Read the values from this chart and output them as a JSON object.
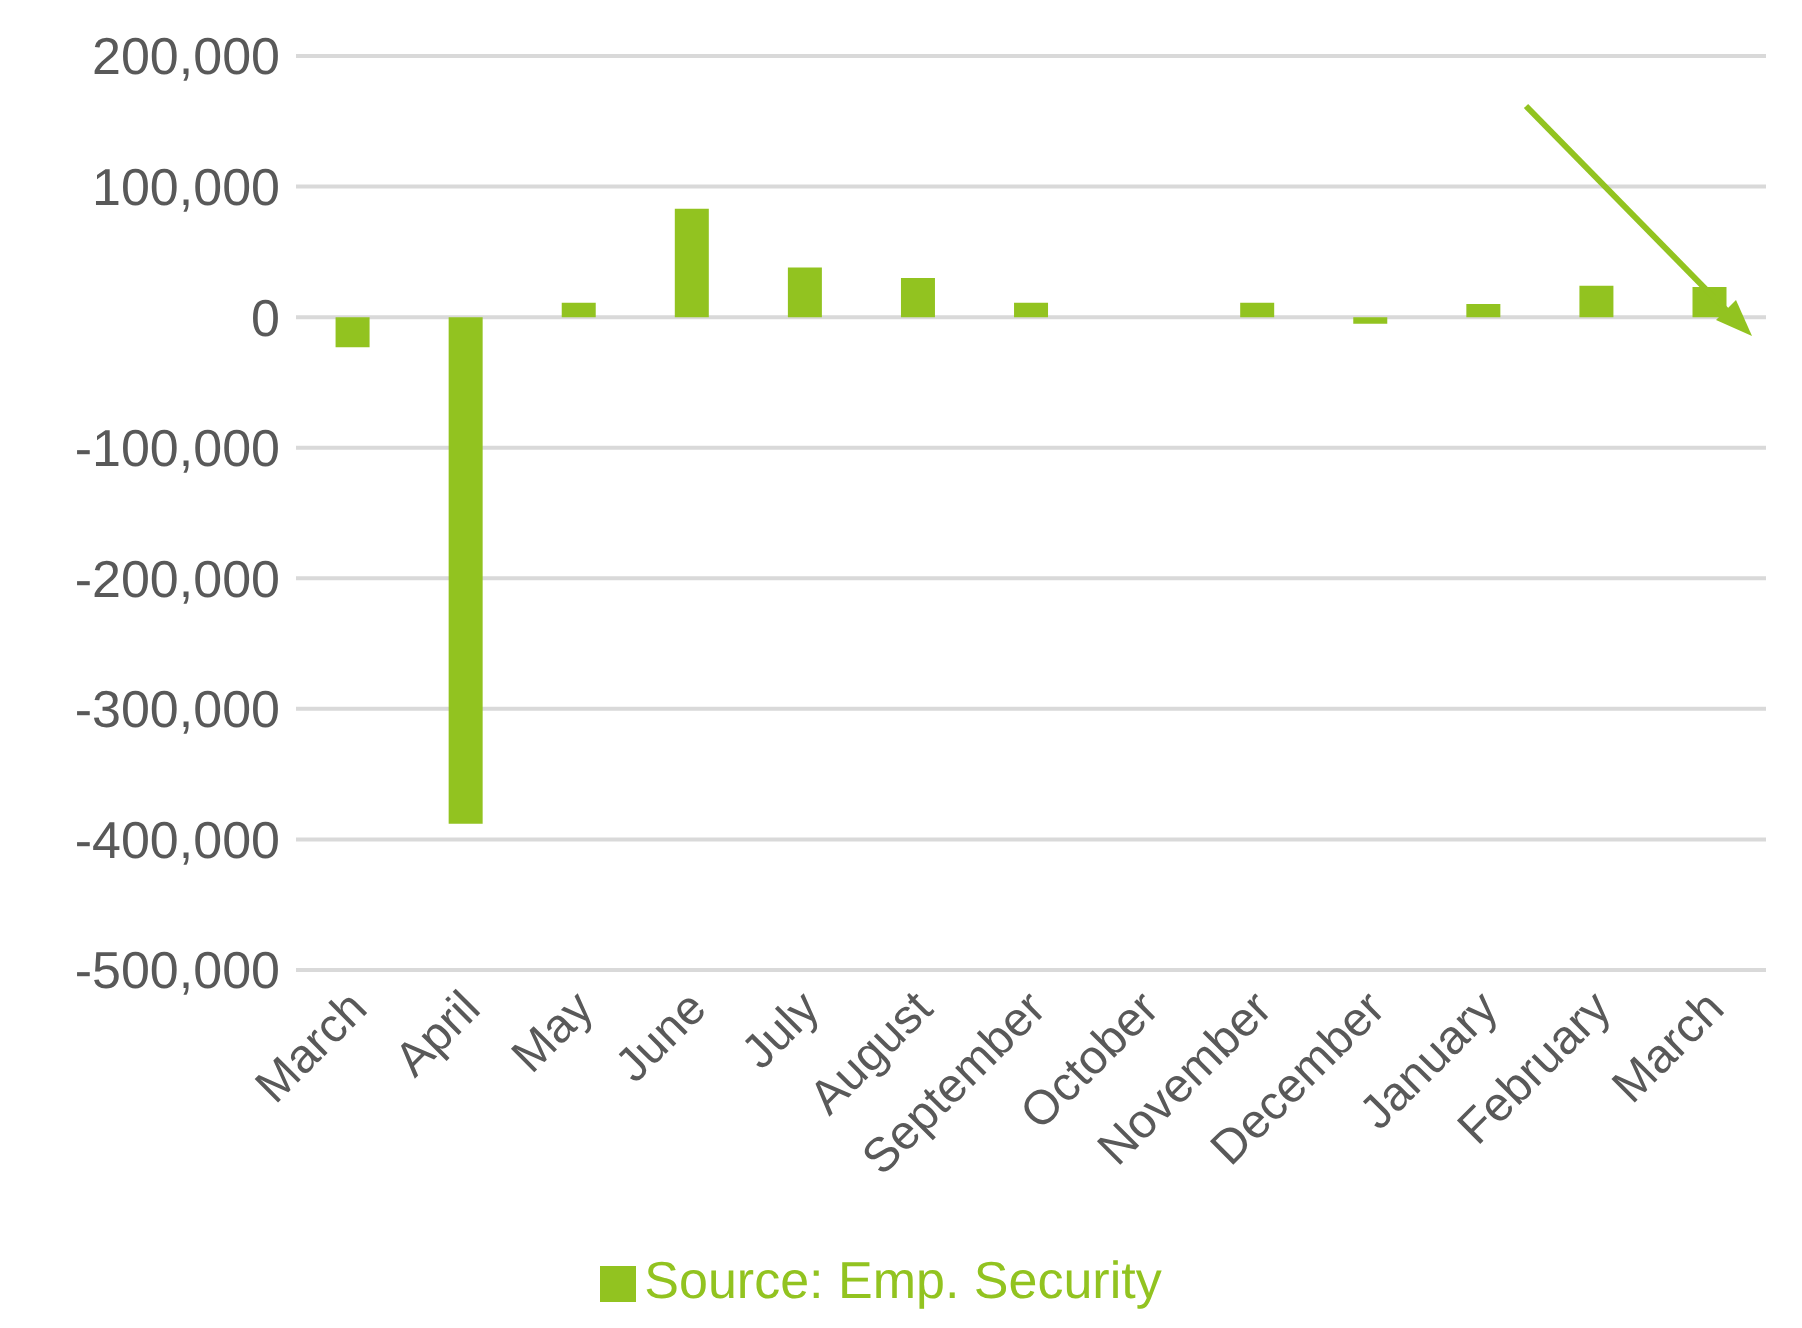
{
  "chart_data": {
    "type": "bar",
    "categories": [
      "March",
      "April",
      "May",
      "June",
      "July",
      "August",
      "September",
      "October",
      "November",
      "December",
      "January",
      "February",
      "March"
    ],
    "series": [
      {
        "name": "Source: Emp. Security",
        "color": "#92c320",
        "values": [
          -23000,
          -388000,
          11000,
          83000,
          38000,
          30000,
          11000,
          0,
          11000,
          -5000,
          10000,
          24000,
          23000
        ]
      }
    ],
    "ylim": [
      -500000,
      200000
    ],
    "yticks": [
      {
        "value": -500000,
        "label": "-500,000"
      },
      {
        "value": -400000,
        "label": "-400,000"
      },
      {
        "value": -300000,
        "label": "-300,000"
      },
      {
        "value": -200000,
        "label": "-200,000"
      },
      {
        "value": -100000,
        "label": "-100,000"
      },
      {
        "value": 0,
        "label": "0"
      },
      {
        "value": 100000,
        "label": "100,000"
      },
      {
        "value": 200000,
        "label": "200,000"
      }
    ],
    "grid": "y",
    "legend": "bottom"
  }
}
